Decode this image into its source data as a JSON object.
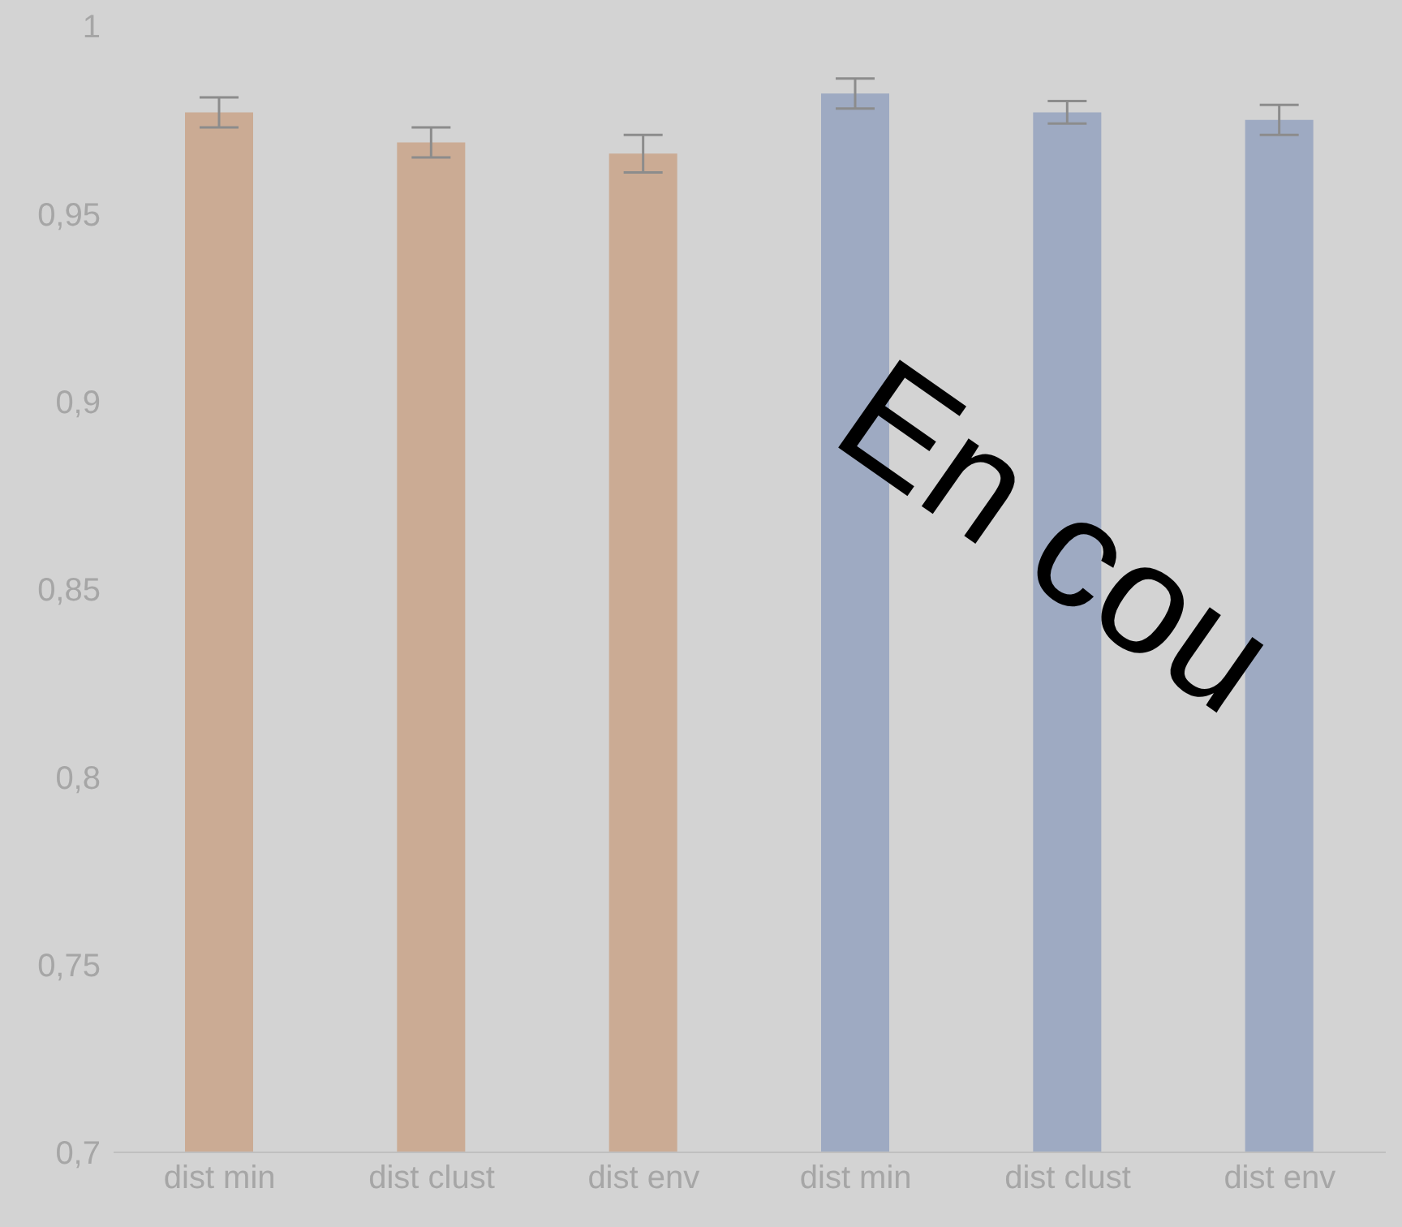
{
  "chart_data": {
    "type": "bar",
    "categories": [
      "dist min",
      "dist clust",
      "dist env",
      "dist min",
      "dist clust",
      "dist env"
    ],
    "values": [
      0.977,
      0.969,
      0.966,
      0.982,
      0.977,
      0.975
    ],
    "errors": [
      0.004,
      0.004,
      0.005,
      0.004,
      0.003,
      0.004
    ],
    "colors": [
      "#cbab94",
      "#cbab94",
      "#cbab94",
      "#9eaac2",
      "#9eaac2",
      "#9eaac2"
    ],
    "ylim": [
      0.7,
      1
    ],
    "yticks": [
      {
        "value": 0.7,
        "label": "0,7"
      },
      {
        "value": 0.75,
        "label": "0,75"
      },
      {
        "value": 0.8,
        "label": "0,8"
      },
      {
        "value": 0.85,
        "label": "0,85"
      },
      {
        "value": 0.9,
        "label": "0,9"
      },
      {
        "value": 0.95,
        "label": "0,95"
      },
      {
        "value": 1,
        "label": "1"
      }
    ],
    "grid": false,
    "legend": false,
    "annotations": [
      "En cou"
    ]
  }
}
